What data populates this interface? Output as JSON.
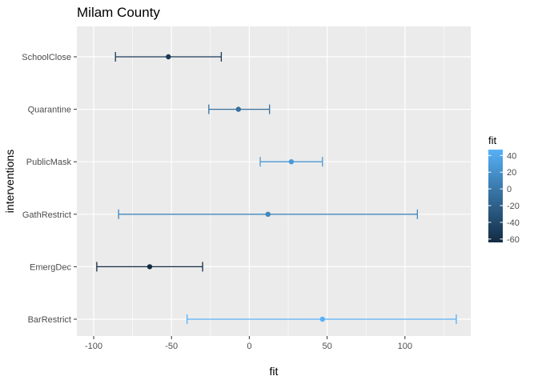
{
  "chart_data": {
    "type": "scatter",
    "title": "Milam County",
    "xlabel": "fit",
    "ylabel": "interventions",
    "xlim": [
      -105,
      143
    ],
    "xticks": [
      -100,
      -50,
      0,
      50,
      100
    ],
    "xtick_labels": [
      "-100",
      "-50",
      "0",
      "50",
      "100"
    ],
    "categories": [
      "SchoolClose",
      "Quarantine",
      "PublicMask",
      "GathRestrict",
      "EmergDec",
      "BarRestrict"
    ],
    "series": [
      {
        "values": [
          {
            "category": "SchoolClose",
            "fit": -52,
            "lower": -86,
            "upper": -18
          },
          {
            "category": "Quarantine",
            "fit": -7,
            "lower": -26,
            "upper": 13
          },
          {
            "category": "PublicMask",
            "fit": 27,
            "lower": 7,
            "upper": 47
          },
          {
            "category": "GathRestrict",
            "fit": 12,
            "lower": -84,
            "upper": 108
          },
          {
            "category": "EmergDec",
            "fit": -64,
            "lower": -98,
            "upper": -30
          },
          {
            "category": "BarRestrict",
            "fit": 47,
            "lower": -40,
            "upper": 133
          }
        ]
      }
    ],
    "legend": {
      "title": "fit",
      "placement": "right",
      "ticks": [
        40,
        20,
        0,
        -20,
        -40,
        -60
      ],
      "tick_labels": [
        "40",
        "20",
        "0",
        "-20",
        "-40",
        "-60"
      ],
      "range": [
        -64,
        47
      ],
      "color_low": "#132B43",
      "color_high": "#56B1F7"
    },
    "grid": true,
    "panel_background": "#EBEBEB"
  }
}
